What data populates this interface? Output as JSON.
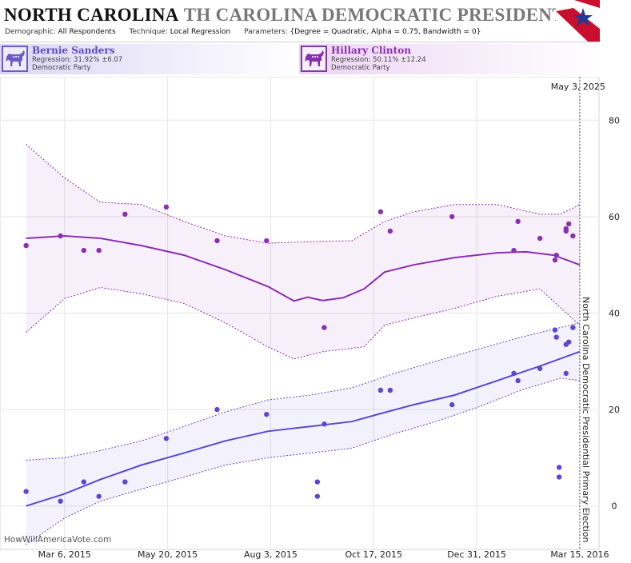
{
  "header": {
    "title_state": "NORTH CAROLINA",
    "title_rest": "TH CAROLINA DEMOCRATIC PRESIDENTIAL",
    "demographic_label": "Demographic:",
    "demographic_value": "All Respondents",
    "technique_label": "Technique:",
    "technique_value": "Local Regression",
    "parameters_label": "Parameters:",
    "parameters_value": "{Degree = Quadratic, Alpha = 0.75, Bandwidth = 0}"
  },
  "candidates": [
    {
      "name": "Bernie Sanders",
      "regression": "Regression: 31.92% ±6.07",
      "party": "Democratic Party"
    },
    {
      "name": "Hillary Clinton",
      "regression": "Regression: 50.11% ±12.24",
      "party": "Democratic Party"
    }
  ],
  "colors": {
    "sanders": "#5b48d1",
    "clinton": "#8a2fb3",
    "flag_red": "#c8102e",
    "flag_blue": "#1f3a93"
  },
  "icons": [
    "democratic-donkey-icon",
    "flag-star-icon"
  ],
  "chart_data": {
    "type": "scatter",
    "title": "",
    "xlabel": "",
    "ylabel": "",
    "ylim": [
      -9,
      89
    ],
    "xlim": [
      "2015-01-18",
      "2016-03-29"
    ],
    "y_ticks": [
      0,
      20,
      40,
      60,
      80
    ],
    "x_ticks": [
      "2015-03-06",
      "2015-05-20",
      "2015-08-03",
      "2015-10-17",
      "2015-12-31",
      "2016-03-15"
    ],
    "x_tick_labels": [
      "Mar 6, 2015",
      "May 20, 2015",
      "Aug 3, 2015",
      "Oct 17, 2015",
      "Dec 31, 2015",
      "Mar 15, 2016"
    ],
    "grid": true,
    "marker_date": "2016-03-15",
    "marker_label_top": "May 3, 2025",
    "marker_label_vertical": "North Carolina Democratic Presidential Primary Election",
    "credit": "HowWillAmericaVote.com",
    "series": [
      {
        "name": "Hillary Clinton",
        "color": "#8a2fb3",
        "points": [
          [
            "2015-02-06",
            54
          ],
          [
            "2015-03-03",
            56
          ],
          [
            "2015-03-20",
            53
          ],
          [
            "2015-03-31",
            53
          ],
          [
            "2015-04-19",
            60.5
          ],
          [
            "2015-05-19",
            62
          ],
          [
            "2015-06-25",
            55
          ],
          [
            "2015-07-31",
            55
          ],
          [
            "2015-09-11",
            37
          ],
          [
            "2015-10-22",
            61
          ],
          [
            "2015-10-29",
            57
          ],
          [
            "2015-12-13",
            60
          ],
          [
            "2016-01-27",
            53
          ],
          [
            "2016-01-30",
            59
          ],
          [
            "2016-02-15",
            55.5
          ],
          [
            "2016-02-26",
            51
          ],
          [
            "2016-02-27",
            52
          ],
          [
            "2016-03-05",
            57
          ],
          [
            "2016-03-05",
            57.5
          ],
          [
            "2016-03-07",
            58.5
          ],
          [
            "2016-03-10",
            56
          ]
        ],
        "regression": [
          [
            "2015-02-06",
            55.5
          ],
          [
            "2015-03-06",
            56
          ],
          [
            "2015-04-01",
            55.5
          ],
          [
            "2015-05-01",
            54
          ],
          [
            "2015-06-01",
            52
          ],
          [
            "2015-07-01",
            49
          ],
          [
            "2015-08-01",
            45.5
          ],
          [
            "2015-08-20",
            42.5
          ],
          [
            "2015-08-30",
            43.3
          ],
          [
            "2015-09-10",
            42.6
          ],
          [
            "2015-09-25",
            43.2
          ],
          [
            "2015-10-10",
            45
          ],
          [
            "2015-10-25",
            48.5
          ],
          [
            "2015-11-15",
            50
          ],
          [
            "2015-12-15",
            51.5
          ],
          [
            "2016-01-15",
            52.5
          ],
          [
            "2016-02-05",
            52.7
          ],
          [
            "2016-02-25",
            52
          ],
          [
            "2016-03-15",
            50
          ]
        ],
        "upper": [
          [
            "2015-02-06",
            75
          ],
          [
            "2015-03-06",
            68
          ],
          [
            "2015-04-01",
            63
          ],
          [
            "2015-05-01",
            62.5
          ],
          [
            "2015-06-01",
            59
          ],
          [
            "2015-07-01",
            56
          ],
          [
            "2015-08-01",
            54.5
          ],
          [
            "2015-09-01",
            54.8
          ],
          [
            "2015-10-01",
            55
          ],
          [
            "2015-10-25",
            59
          ],
          [
            "2015-11-15",
            61
          ],
          [
            "2015-12-15",
            62.5
          ],
          [
            "2016-01-15",
            62.5
          ],
          [
            "2016-02-15",
            60.5
          ],
          [
            "2016-03-01",
            60.5
          ],
          [
            "2016-03-15",
            62.5
          ]
        ],
        "lower": [
          [
            "2015-02-06",
            36
          ],
          [
            "2015-03-06",
            43
          ],
          [
            "2015-04-01",
            45.3
          ],
          [
            "2015-05-01",
            44
          ],
          [
            "2015-06-01",
            42
          ],
          [
            "2015-07-01",
            38
          ],
          [
            "2015-08-01",
            33
          ],
          [
            "2015-08-20",
            30.5
          ],
          [
            "2015-09-10",
            32
          ],
          [
            "2015-10-10",
            33
          ],
          [
            "2015-10-25",
            37.5
          ],
          [
            "2015-11-15",
            39
          ],
          [
            "2015-12-15",
            41
          ],
          [
            "2016-01-15",
            43.5
          ],
          [
            "2016-02-15",
            45
          ],
          [
            "2016-03-15",
            37.5
          ]
        ]
      },
      {
        "name": "Bernie Sanders",
        "color": "#5b48d1",
        "points": [
          [
            "2015-02-06",
            3
          ],
          [
            "2015-03-03",
            1
          ],
          [
            "2015-03-20",
            5
          ],
          [
            "2015-03-31",
            2
          ],
          [
            "2015-04-19",
            5
          ],
          [
            "2015-05-19",
            14
          ],
          [
            "2015-06-25",
            20
          ],
          [
            "2015-07-31",
            19
          ],
          [
            "2015-09-06",
            5
          ],
          [
            "2015-09-06",
            2
          ],
          [
            "2015-09-11",
            17
          ],
          [
            "2015-10-22",
            24
          ],
          [
            "2015-10-29",
            24
          ],
          [
            "2015-12-13",
            21
          ],
          [
            "2016-01-27",
            27.5
          ],
          [
            "2016-01-30",
            26
          ],
          [
            "2016-02-15",
            28.5
          ],
          [
            "2016-02-26",
            36.5
          ],
          [
            "2016-02-27",
            35
          ],
          [
            "2016-02-29",
            8
          ],
          [
            "2016-02-29",
            6
          ],
          [
            "2016-03-05",
            27.5
          ],
          [
            "2016-03-05",
            33.5
          ],
          [
            "2016-03-07",
            34
          ],
          [
            "2016-03-10",
            37
          ]
        ],
        "regression": [
          [
            "2015-02-06",
            0
          ],
          [
            "2015-03-06",
            2.5
          ],
          [
            "2015-04-01",
            5.5
          ],
          [
            "2015-05-01",
            8.5
          ],
          [
            "2015-06-01",
            11
          ],
          [
            "2015-07-01",
            13.5
          ],
          [
            "2015-08-01",
            15.5
          ],
          [
            "2015-09-01",
            16.5
          ],
          [
            "2015-10-01",
            17.5
          ],
          [
            "2015-10-20",
            19
          ],
          [
            "2015-11-15",
            21
          ],
          [
            "2015-12-15",
            23
          ],
          [
            "2016-01-15",
            26
          ],
          [
            "2016-02-15",
            29
          ],
          [
            "2016-03-15",
            32
          ]
        ],
        "upper": [
          [
            "2015-02-06",
            9.5
          ],
          [
            "2015-03-06",
            10
          ],
          [
            "2015-04-01",
            11.5
          ],
          [
            "2015-05-01",
            13.5
          ],
          [
            "2015-06-01",
            16.5
          ],
          [
            "2015-07-01",
            19.5
          ],
          [
            "2015-08-01",
            22
          ],
          [
            "2015-09-01",
            23
          ],
          [
            "2015-10-01",
            24.5
          ],
          [
            "2015-11-01",
            27.5
          ],
          [
            "2015-12-01",
            30
          ],
          [
            "2016-01-01",
            32.5
          ],
          [
            "2016-02-01",
            35
          ],
          [
            "2016-03-15",
            38
          ]
        ],
        "lower": [
          [
            "2015-02-06",
            -8
          ],
          [
            "2015-03-06",
            -2.5
          ],
          [
            "2015-04-01",
            1
          ],
          [
            "2015-05-01",
            3.5
          ],
          [
            "2015-06-01",
            6
          ],
          [
            "2015-07-01",
            8.5
          ],
          [
            "2015-08-01",
            10
          ],
          [
            "2015-09-01",
            11
          ],
          [
            "2015-10-01",
            12
          ],
          [
            "2015-11-01",
            15
          ],
          [
            "2015-12-01",
            17.5
          ],
          [
            "2016-01-01",
            20.5
          ],
          [
            "2016-02-01",
            24
          ],
          [
            "2016-03-01",
            26.5
          ],
          [
            "2016-03-15",
            26
          ]
        ]
      }
    ]
  }
}
